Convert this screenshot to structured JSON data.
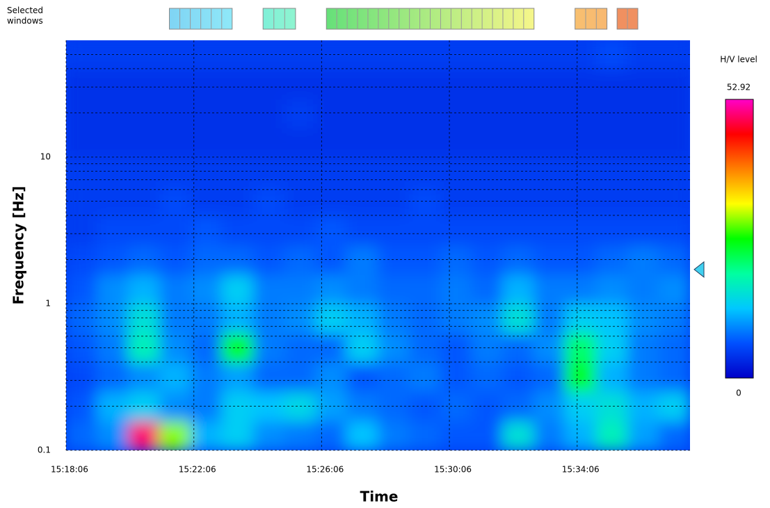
{
  "chart_data": {
    "type": "heatmap",
    "windows_label": "Selected windows",
    "xlabel": "Time",
    "ylabel": "Frequency [Hz]",
    "colorbar_label": "H/V level",
    "xlim": [
      0,
      1172
    ],
    "xticks": [
      {
        "value": 0,
        "label": "15:18:06"
      },
      {
        "value": 240,
        "label": "15:22:06"
      },
      {
        "value": 480,
        "label": "15:26:06"
      },
      {
        "value": 720,
        "label": "15:30:06"
      },
      {
        "value": 960,
        "label": "15:34:06"
      }
    ],
    "ylim": [
      0.1,
      62.5
    ],
    "yscale": "log",
    "yticks": [
      0.1,
      1,
      10
    ],
    "yminor": [
      0.2,
      0.3,
      0.4,
      0.5,
      0.6,
      0.7,
      0.8,
      0.9,
      2,
      3,
      4,
      5,
      6,
      7,
      8,
      9,
      20,
      30,
      40,
      50
    ],
    "grid": true,
    "zlim": [
      0,
      52.92
    ],
    "colormap": [
      "#0000c8",
      "#0050ff",
      "#00c8ff",
      "#00ffa0",
      "#00ff00",
      "#ffff00",
      "#ff8000",
      "#ff0000",
      "#ff00c8"
    ],
    "z": [
      [
        8,
        10,
        50,
        30,
        12,
        14,
        10,
        9,
        8,
        13,
        9,
        8,
        7,
        7,
        16,
        9,
        12,
        18,
        11,
        8
      ],
      [
        7,
        12,
        14,
        10,
        9,
        14,
        13,
        15,
        11,
        9,
        8,
        7,
        8,
        7,
        8,
        10,
        14,
        16,
        12,
        14
      ],
      [
        6,
        8,
        10,
        12,
        9,
        11,
        8,
        8,
        10,
        7,
        8,
        9,
        7,
        8,
        7,
        8,
        25,
        12,
        9,
        8
      ],
      [
        7,
        9,
        18,
        10,
        8,
        25,
        9,
        8,
        8,
        14,
        10,
        8,
        7,
        9,
        8,
        10,
        22,
        14,
        9,
        8
      ],
      [
        8,
        10,
        16,
        9,
        9,
        12,
        9,
        10,
        14,
        12,
        9,
        8,
        9,
        10,
        16,
        9,
        14,
        13,
        10,
        9
      ],
      [
        7,
        10,
        12,
        9,
        10,
        14,
        9,
        9,
        10,
        9,
        8,
        8,
        9,
        8,
        12,
        9,
        9,
        10,
        9,
        10
      ],
      [
        6,
        7,
        8,
        7,
        8,
        8,
        7,
        8,
        7,
        9,
        7,
        7,
        8,
        7,
        8,
        7,
        7,
        8,
        9,
        8
      ],
      [
        5,
        6,
        6,
        6,
        7,
        6,
        6,
        6,
        7,
        6,
        6,
        6,
        6,
        6,
        6,
        6,
        6,
        6,
        6,
        6
      ],
      [
        5,
        5,
        5,
        6,
        5,
        5,
        6,
        5,
        5,
        5,
        5,
        6,
        5,
        5,
        5,
        5,
        5,
        5,
        5,
        5
      ],
      [
        5,
        5,
        5,
        5,
        5,
        5,
        5,
        5,
        5,
        5,
        5,
        5,
        5,
        5,
        5,
        5,
        5,
        5,
        5,
        5
      ],
      [
        4,
        4,
        4,
        4,
        4,
        4,
        4,
        4,
        4,
        4,
        4,
        4,
        4,
        4,
        4,
        4,
        4,
        4,
        4,
        4
      ],
      [
        4,
        4,
        4,
        4,
        4,
        4,
        4,
        5,
        4,
        4,
        4,
        4,
        4,
        4,
        4,
        4,
        4,
        4,
        4,
        4
      ],
      [
        4,
        4,
        4,
        4,
        4,
        4,
        4,
        4,
        4,
        4,
        4,
        4,
        4,
        4,
        4,
        4,
        4,
        4,
        4,
        4
      ],
      [
        5,
        5,
        5,
        5,
        5,
        5,
        5,
        5,
        5,
        5,
        5,
        5,
        5,
        5,
        5,
        5,
        5,
        6,
        5,
        5
      ]
    ],
    "windows": [
      {
        "start": 194,
        "end": 312,
        "count": 6,
        "colors": [
          "#7fd4f4",
          "#8fe8f8"
        ]
      },
      {
        "start": 370,
        "end": 431,
        "count": 3,
        "colors": [
          "#7ff0d8",
          "#8ff4d0"
        ]
      },
      {
        "start": 489,
        "end": 879,
        "count": 20,
        "colors": [
          "#66e07a",
          "#f6f68a"
        ]
      },
      {
        "start": 956,
        "end": 1016,
        "count": 3,
        "colors": [
          "#f8c070",
          "#f8b870"
        ]
      },
      {
        "start": 1035,
        "end": 1074,
        "count": 2,
        "colors": [
          "#f09060",
          "#f09060"
        ]
      }
    ],
    "marker_frequency": 1.71,
    "marker_color": "#40d0f0"
  }
}
